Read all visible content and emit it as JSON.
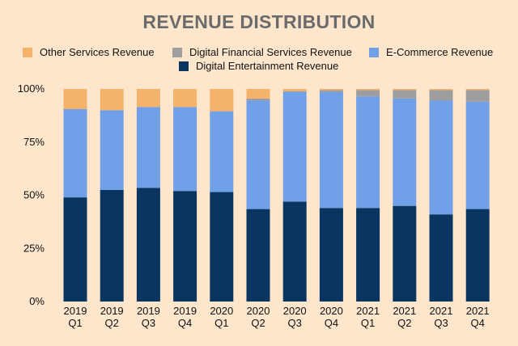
{
  "chart_data": {
    "type": "bar",
    "stacked": true,
    "normalized": true,
    "title": "REVENUE DISTRIBUTION",
    "categories": [
      [
        "2019",
        "Q1"
      ],
      [
        "2019",
        "Q2"
      ],
      [
        "2019",
        "Q3"
      ],
      [
        "2019",
        "Q4"
      ],
      [
        "2020",
        "Q1"
      ],
      [
        "2020",
        "Q2"
      ],
      [
        "2020",
        "Q3"
      ],
      [
        "2020",
        "Q4"
      ],
      [
        "2021",
        "Q1"
      ],
      [
        "2021",
        "Q2"
      ],
      [
        "2021",
        "Q3"
      ],
      [
        "2021",
        "Q4"
      ]
    ],
    "ylim": [
      0,
      100
    ],
    "yticks": [
      "0%",
      "25%",
      "50%",
      "75%",
      "100%"
    ],
    "ytick_values": [
      0,
      25,
      50,
      75,
      100
    ],
    "legend_position": "top",
    "series": [
      {
        "name": "Digital Entertainment Revenue",
        "color": "#0b3561",
        "values": [
          49,
          52.5,
          53.5,
          52,
          51.5,
          43.5,
          47,
          44,
          44,
          45,
          41,
          43.5
        ]
      },
      {
        "name": "E-Commerce Revenue",
        "color": "#6fa0e8",
        "values": [
          41.5,
          37.5,
          38,
          39.5,
          38,
          51,
          51.5,
          54.5,
          52.5,
          50.5,
          53.5,
          50.5
        ]
      },
      {
        "name": "Digital Financial Services Revenue",
        "color": "#9e9e9e",
        "values": [
          0,
          0,
          0,
          0,
          0,
          1,
          0.5,
          1,
          3,
          4,
          5,
          5.5
        ]
      },
      {
        "name": "Other Services Revenue",
        "color": "#f5b26b",
        "values": [
          9.5,
          10,
          8.5,
          8.5,
          10.5,
          4.5,
          1,
          0.5,
          0.5,
          0.5,
          0.5,
          0.5
        ]
      }
    ]
  },
  "legend": [
    {
      "label": "Other Services Revenue",
      "color": "#f5b26b"
    },
    {
      "label": "Digital Financial Services Revenue",
      "color": "#9e9e9e"
    },
    {
      "label": "E-Commerce Revenue",
      "color": "#6fa0e8"
    },
    {
      "label": "Digital Entertainment Revenue",
      "color": "#0b3561"
    }
  ]
}
